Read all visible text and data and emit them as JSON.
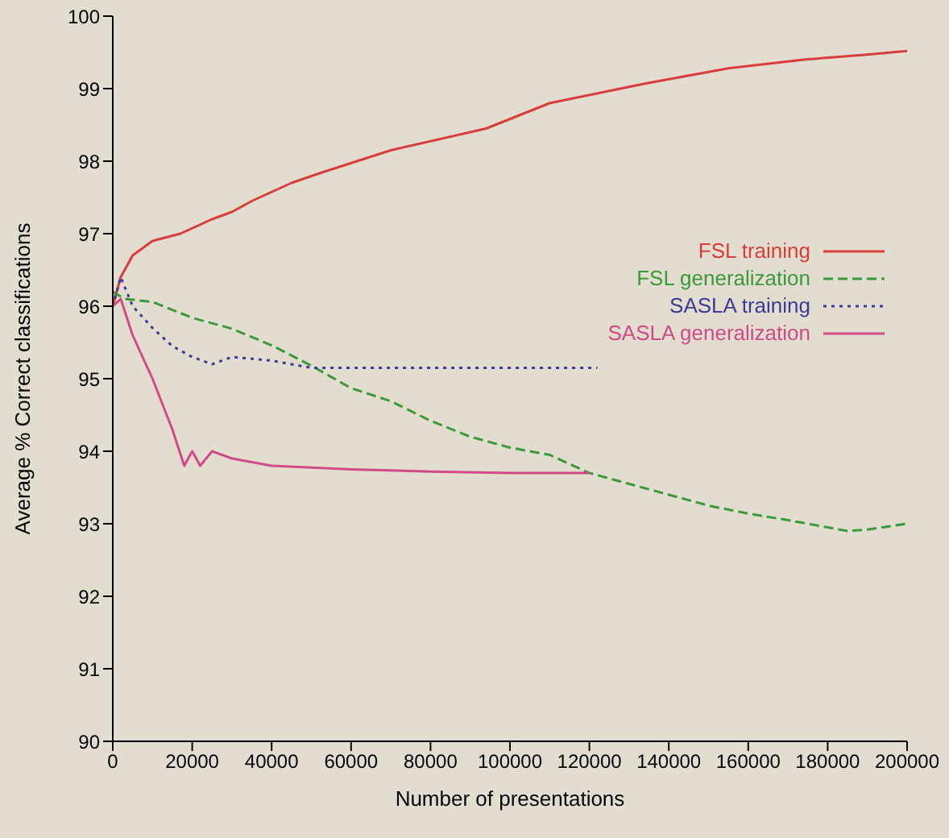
{
  "chart_data": {
    "type": "line",
    "xlabel": "Number of presentations",
    "ylabel": "Average % Correct classifications",
    "xlim": [
      0,
      200000
    ],
    "xticks": [
      0,
      20000,
      40000,
      60000,
      80000,
      100000,
      120000,
      140000,
      160000,
      180000,
      200000
    ],
    "ylim": [
      90,
      100
    ],
    "yticks": [
      90,
      91,
      92,
      93,
      94,
      95,
      96,
      97,
      98,
      99,
      100
    ],
    "grid": false,
    "legend": "top right",
    "marker": "none",
    "series": [
      {
        "name": "FSL training",
        "color": "#d83c3c",
        "line_style": "solid",
        "x": [
          0,
          2000,
          5000,
          10000,
          17000,
          25000,
          30000,
          35000,
          45000,
          53000,
          70000,
          94000,
          110000,
          134000,
          155000,
          174000,
          190000,
          200000
        ],
        "values": [
          96.0,
          96.4,
          96.7,
          96.9,
          97.0,
          97.2,
          97.3,
          97.45,
          97.7,
          97.85,
          98.15,
          98.45,
          98.8,
          99.07,
          99.28,
          99.4,
          99.47,
          99.52
        ]
      },
      {
        "name": "FSL generalization",
        "color": "#3a9a3a",
        "line_style": "dashed",
        "x": [
          0,
          3000,
          10000,
          20000,
          30000,
          40000,
          50000,
          60000,
          70000,
          80000,
          90000,
          100000,
          110000,
          120000,
          130000,
          140000,
          150000,
          160000,
          170000,
          180000,
          185000,
          190000,
          200000
        ],
        "values": [
          96.2,
          96.1,
          96.06,
          95.84,
          95.69,
          95.46,
          95.18,
          94.87,
          94.69,
          94.42,
          94.2,
          94.05,
          93.95,
          93.7,
          93.55,
          93.4,
          93.25,
          93.14,
          93.05,
          92.95,
          92.9,
          92.92,
          93.0
        ]
      },
      {
        "name": "SASLA training",
        "color": "#3a3a9a",
        "line_style": "dotted",
        "x": [
          0,
          2000,
          5000,
          10000,
          15000,
          20000,
          25000,
          30000,
          40000,
          50000,
          60000,
          80000,
          100000,
          122000
        ],
        "values": [
          96.0,
          96.4,
          96.0,
          95.7,
          95.45,
          95.3,
          95.2,
          95.3,
          95.25,
          95.15,
          95.15,
          95.15,
          95.15,
          95.15
        ]
      },
      {
        "name": "SASLA generalization",
        "color": "#d04a8a",
        "line_style": "solid",
        "x": [
          0,
          2000,
          5000,
          10000,
          15000,
          18000,
          20000,
          22000,
          25000,
          30000,
          40000,
          60000,
          80000,
          100000,
          120000
        ],
        "values": [
          96.0,
          96.1,
          95.6,
          95.0,
          94.3,
          93.8,
          94.0,
          93.8,
          94.0,
          93.9,
          93.8,
          93.75,
          93.72,
          93.7,
          93.7
        ]
      }
    ]
  }
}
